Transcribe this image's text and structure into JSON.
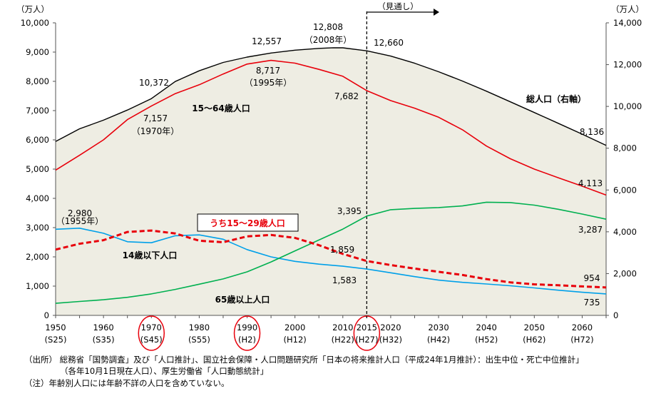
{
  "chart_data": {
    "type": "line",
    "y_left": {
      "unit": "（万人）",
      "min": 0,
      "max": 10000,
      "ticks": [
        "0",
        "1,000",
        "2,000",
        "3,000",
        "4,000",
        "5,000",
        "6,000",
        "7,000",
        "8,000",
        "9,000",
        "10,000"
      ]
    },
    "y_right": {
      "unit": "（万人）",
      "min": 0,
      "max": 14000,
      "ticks": [
        "0",
        "2,000",
        "4,000",
        "6,000",
        "8,000",
        "10,000",
        "12,000",
        "14,000"
      ]
    },
    "x_ticks": [
      {
        "year": 1950,
        "label": "1950",
        "sub": "(S25)",
        "circled": false
      },
      {
        "year": 1960,
        "label": "1960",
        "sub": "(S35)",
        "circled": false
      },
      {
        "year": 1970,
        "label": "1970",
        "sub": "(S45)",
        "circled": true
      },
      {
        "year": 1980,
        "label": "1980",
        "sub": "(S55)",
        "circled": false
      },
      {
        "year": 1990,
        "label": "1990",
        "sub": "(H2)",
        "circled": true
      },
      {
        "year": 2000,
        "label": "2000",
        "sub": "(H12)",
        "circled": false
      },
      {
        "year": 2010,
        "label": "2010",
        "sub": "(H22)",
        "circled": false
      },
      {
        "year": 2015,
        "label": "2015",
        "sub": "(H27)",
        "circled": true
      },
      {
        "year": 2020,
        "label": "2020",
        "sub": "(H32)",
        "circled": false
      },
      {
        "year": 2030,
        "label": "2030",
        "sub": "(H42)",
        "circled": false
      },
      {
        "year": 2040,
        "label": "2040",
        "sub": "(H52)",
        "circled": false
      },
      {
        "year": 2050,
        "label": "2050",
        "sub": "(H62)",
        "circled": false
      },
      {
        "year": 2060,
        "label": "2060",
        "sub": "(H72)",
        "circled": false
      }
    ],
    "projection_label": "（見通し）",
    "projection_start": 2015,
    "series": [
      {
        "name": "総人口（右軸）",
        "axis": "right",
        "color": "#000000",
        "fill": "#eeede3",
        "x": [
          1950,
          1955,
          1960,
          1965,
          1970,
          1975,
          1980,
          1985,
          1990,
          1995,
          2000,
          2005,
          2008,
          2010,
          2015,
          2020,
          2025,
          2030,
          2035,
          2040,
          2045,
          2050,
          2055,
          2060,
          2065
        ],
        "y": [
          8320,
          8928,
          9342,
          9828,
          10372,
          11194,
          11706,
          12105,
          12361,
          12557,
          12693,
          12777,
          12808,
          12806,
          12660,
          12410,
          12066,
          11662,
          11212,
          10728,
          10221,
          9708,
          9193,
          8674,
          8136
        ]
      },
      {
        "name": "15〜64歳人口",
        "axis": "left",
        "color": "#e8000b",
        "x": [
          1950,
          1955,
          1960,
          1965,
          1970,
          1975,
          1980,
          1985,
          1990,
          1995,
          2000,
          2005,
          2010,
          2015,
          2020,
          2025,
          2030,
          2035,
          2040,
          2045,
          2050,
          2055,
          2060,
          2065
        ],
        "y": [
          4966,
          5473,
          6000,
          6693,
          7157,
          7581,
          7883,
          8251,
          8590,
          8717,
          8622,
          8409,
          8173,
          7682,
          7341,
          7084,
          6773,
          6343,
          5787,
          5353,
          5001,
          4706,
          4418,
          4113
        ]
      },
      {
        "name": "14歳以下人口",
        "axis": "left",
        "color": "#00a0e9",
        "x": [
          1950,
          1955,
          1960,
          1965,
          1970,
          1975,
          1980,
          1985,
          1990,
          1995,
          2000,
          2005,
          2010,
          2015,
          2020,
          2025,
          2030,
          2035,
          2040,
          2045,
          2050,
          2055,
          2060,
          2065
        ],
        "y": [
          2943,
          2980,
          2807,
          2517,
          2482,
          2722,
          2751,
          2603,
          2249,
          2001,
          1847,
          1752,
          1680,
          1583,
          1457,
          1324,
          1204,
          1129,
          1073,
          1012,
          939,
          861,
          791,
          735
        ]
      },
      {
        "name": "65歳以上人口",
        "axis": "left",
        "color": "#00b050",
        "x": [
          1950,
          1955,
          1960,
          1965,
          1970,
          1975,
          1980,
          1985,
          1990,
          1995,
          2000,
          2005,
          2010,
          2015,
          2020,
          2025,
          2030,
          2035,
          2040,
          2045,
          2050,
          2055,
          2060,
          2065
        ],
        "y": [
          411,
          475,
          535,
          618,
          733,
          887,
          1065,
          1247,
          1489,
          1826,
          2204,
          2576,
          2948,
          3395,
          3612,
          3657,
          3685,
          3741,
          3868,
          3856,
          3768,
          3626,
          3464,
          3287
        ]
      },
      {
        "name": "うち15〜29歳人口",
        "axis": "left",
        "color": "#e8000b",
        "dashed": true,
        "x": [
          1950,
          1955,
          1960,
          1965,
          1970,
          1975,
          1980,
          1985,
          1990,
          1995,
          2000,
          2005,
          2010,
          2015,
          2020,
          2025,
          2030,
          2035,
          2040,
          2045,
          2050,
          2055,
          2060,
          2065
        ],
        "y": [
          2250,
          2450,
          2570,
          2850,
          2900,
          2800,
          2550,
          2500,
          2700,
          2750,
          2650,
          2400,
          2100,
          1859,
          1720,
          1600,
          1490,
          1380,
          1240,
          1130,
          1060,
          1030,
          990,
          954
        ]
      }
    ],
    "labels": {
      "total_1970": "10,372",
      "total_1995": "12,557",
      "total_peak": "12,808",
      "total_peak_year": "（2008年）",
      "total_2015": "12,660",
      "total_end": "8,136",
      "total_name": "総人口（右軸）",
      "working_name": "15〜64歳人口",
      "working_1970": "7,157",
      "working_1970_year": "（1970年）",
      "working_1995": "8,717",
      "working_1995_year": "（1995年）",
      "working_2015": "7,682",
      "working_end": "4,113",
      "child_name": "14歳以下人口",
      "child_1955": "2,980",
      "child_1955_year": "（1955年）",
      "child_2015": "1,583",
      "child_end": "735",
      "elder_name": "65歳以上人口",
      "elder_2015": "3,395",
      "elder_end": "3,287",
      "youth_name": "うち15〜29歳人口",
      "youth_2015": "1,859",
      "youth_end": "954"
    }
  },
  "notes": {
    "source_line1": "（出所）  総務省「国勢調査」及び「人口推計」、国立社会保障・人口問題研究所「日本の将来推計人口（平成24年1月推計）：出生中位・死亡中位推計」",
    "source_line2": "（各年10月1日現在人口）、厚生労働省「人口動態統計」",
    "note_line": "（注）年齢別人口には年齢不詳の人口を含めていない。"
  }
}
